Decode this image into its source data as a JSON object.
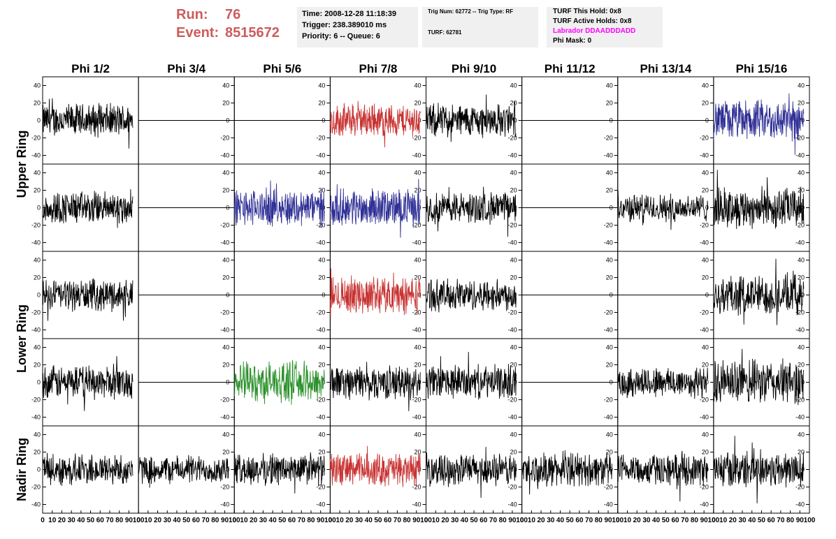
{
  "header": {
    "run_label": "Run:",
    "run_value": "76",
    "event_label": "Event:",
    "event_value": "8515672",
    "time": "Time: 2008-12-28 11:18:39",
    "trigger": "Trigger: 238.389010 ms",
    "priority": "Priority: 6 -- Queue: 6",
    "trig_num": "Trig Num: 62772 -- Trig Type: RF",
    "turf": "TURF: 62781",
    "turf_this_hold": "TURF This Hold: 0x8",
    "turf_active_holds": "TURF Active Holds: 0x8",
    "labrador": "Labrador DDAADDDADD",
    "phi_mask": "Phi Mask: 0"
  },
  "colors": {
    "background": "#ffffff",
    "info_box": "#f0f0f0",
    "run_event": "#cd5c5c",
    "labrador": "#ff00ff",
    "trace_black": "#000000",
    "trace_red": "#c83232",
    "trace_blue": "#2f2f96",
    "trace_green": "#2a902a"
  },
  "chart_data": {
    "type": "line",
    "columns": [
      "Phi 1/2",
      "Phi 3/4",
      "Phi 5/6",
      "Phi 7/8",
      "Phi 9/10",
      "Phi 11/12",
      "Phi 13/14",
      "Phi 15/16"
    ],
    "rows": [
      "Upper Ring",
      "Upper Ring",
      "Lower Ring",
      "Lower Ring",
      "Nadir Ring"
    ],
    "row_titles": [
      "Upper Ring",
      "Lower Ring",
      "Nadir Ring"
    ],
    "xlim": [
      0,
      100
    ],
    "ylim": [
      -50,
      50
    ],
    "x_ticks": [
      "0",
      "10",
      "20",
      "30",
      "40",
      "50",
      "60",
      "70",
      "80",
      "90",
      "100"
    ],
    "y_ticks": [
      "-40",
      "-20",
      "0",
      "20",
      "40"
    ],
    "grid": false,
    "samples_per_trace": 260,
    "trace_color": [
      [
        "black",
        "flat",
        "flat",
        "red",
        "black",
        "flat",
        "flat",
        "blue"
      ],
      [
        "black",
        "flat",
        "blue",
        "blue",
        "black",
        "flat",
        "black",
        "black"
      ],
      [
        "black",
        "flat",
        "flat",
        "red",
        "black",
        "flat",
        "flat",
        "black"
      ],
      [
        "black",
        "flat",
        "green",
        "black",
        "black",
        "flat",
        "black",
        "black"
      ],
      [
        "black",
        "black",
        "black",
        "red",
        "black",
        "black",
        "black",
        "black"
      ]
    ],
    "trace_amplitude": [
      [
        18,
        0,
        0,
        18,
        18,
        0,
        0,
        22
      ],
      [
        18,
        0,
        20,
        20,
        17,
        0,
        15,
        22
      ],
      [
        17,
        0,
        0,
        20,
        17,
        0,
        0,
        22
      ],
      [
        18,
        0,
        22,
        18,
        18,
        0,
        17,
        24
      ],
      [
        17,
        15,
        17,
        18,
        17,
        18,
        17,
        20
      ]
    ]
  }
}
